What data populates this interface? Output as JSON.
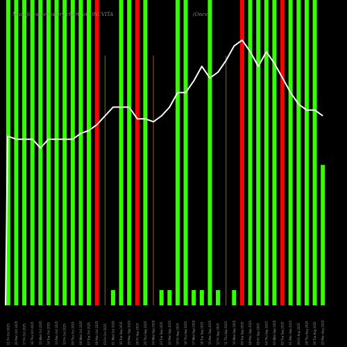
{
  "chart_data": {
    "type": "bar",
    "title": "Munafa value history chart for ONCVITA",
    "title_suffix": "(Oncvi",
    "categories": [
      "21 Fri Oct 2025",
      "20 Mon Oct 2025",
      "17 Fri Oct 2025",
      "16 Thu Oct 2025",
      "15 Wed Oct 2025",
      "14 Tue Oct 2025",
      "13 Mon Oct 2025",
      "10 Fri Oct 2025",
      "09 Thu Oct 2025",
      "08 Wed Oct 2025",
      "07 Tue Oct 2025",
      "06 Mon Oct 2025",
      "03 Fri Oct 2025",
      "01 Wed Oct 2025",
      "30 Tue Sep 2025",
      "29 Mon Sep 2025",
      "26 Fri Sep 2025",
      "25 Thu Sep 2025",
      "24 Wed Sep 2025",
      "23 Tue Sep 2025",
      "22 Mon Sep 2025",
      "19 Fri Sep 2025",
      "18 Thu Sep 2025",
      "17 Wed Sep 2025",
      "16 Tue Sep 2025",
      "15 Mon Sep 2025",
      "12 Fri Sep 2025",
      "11 Thu Sep 2025",
      "10 Wed Sep 2025",
      "09 Tue Sep 2025",
      "08 Mon Sep 2025",
      "05 Fri Sep 2025",
      "04 Thu Sep 2025",
      "03 Wed Sep 2025",
      "02 Tue Sep 2025",
      "01 Mon Sep 2025",
      "29 Fri Aug 2025",
      "28 Thu Aug 2025",
      "26 Tue Aug 2025",
      "25 Mon Aug 2025"
    ],
    "bars": [
      {
        "value": 100,
        "color": "#33ff00"
      },
      {
        "value": 100,
        "color": "#33ff00"
      },
      {
        "value": 100,
        "color": "#33ff00"
      },
      {
        "value": 100,
        "color": "#33ff00"
      },
      {
        "value": 100,
        "color": "#33ff00"
      },
      {
        "value": 100,
        "color": "#33ff00"
      },
      {
        "value": 100,
        "color": "#33ff00"
      },
      {
        "value": 100,
        "color": "#33ff00"
      },
      {
        "value": 100,
        "color": "#33ff00"
      },
      {
        "value": 100,
        "color": "#33ff00"
      },
      {
        "value": 100,
        "color": "#33ff00"
      },
      {
        "value": 100,
        "color": "#ff0000"
      },
      {
        "value": 0,
        "color": "#33ff00"
      },
      {
        "value": 5,
        "color": "#33ff00"
      },
      {
        "value": 100,
        "color": "#33ff00"
      },
      {
        "value": 100,
        "color": "#33ff00"
      },
      {
        "value": 100,
        "color": "#ff0000"
      },
      {
        "value": 100,
        "color": "#33ff00"
      },
      {
        "value": 0,
        "color": "#33ff00"
      },
      {
        "value": 5,
        "color": "#33ff00"
      },
      {
        "value": 5,
        "color": "#33ff00"
      },
      {
        "value": 100,
        "color": "#33ff00"
      },
      {
        "value": 100,
        "color": "#33ff00"
      },
      {
        "value": 5,
        "color": "#33ff00"
      },
      {
        "value": 5,
        "color": "#33ff00"
      },
      {
        "value": 100,
        "color": "#33ff00"
      },
      {
        "value": 5,
        "color": "#33ff00"
      },
      {
        "value": 0,
        "color": "#33ff00"
      },
      {
        "value": 5,
        "color": "#33ff00"
      },
      {
        "value": 100,
        "color": "#ff0000"
      },
      {
        "value": 100,
        "color": "#33ff00"
      },
      {
        "value": 100,
        "color": "#33ff00"
      },
      {
        "value": 100,
        "color": "#33ff00"
      },
      {
        "value": 100,
        "color": "#33ff00"
      },
      {
        "value": 100,
        "color": "#ff0000"
      },
      {
        "value": 100,
        "color": "#33ff00"
      },
      {
        "value": 100,
        "color": "#33ff00"
      },
      {
        "value": 100,
        "color": "#33ff00"
      },
      {
        "value": 100,
        "color": "#33ff00"
      },
      {
        "value": 46,
        "color": "#33ff00"
      }
    ],
    "line": [
      58,
      57,
      57,
      57,
      54,
      57,
      57,
      57,
      57,
      59,
      60,
      62,
      65,
      68,
      68,
      68,
      64,
      64,
      63,
      65,
      68,
      73,
      73,
      77,
      82,
      78,
      80,
      84,
      89,
      91,
      87,
      82,
      87,
      83,
      78,
      73,
      69,
      67,
      67,
      65
    ],
    "ylim": [
      0,
      100
    ],
    "line_ylim": [
      0,
      100
    ],
    "grid": false,
    "colors": {
      "background": "#000000",
      "up_bar": "#33ff00",
      "down_bar": "#ff0000",
      "line": "#ffffff",
      "baseline_marker": "#b35900",
      "title": "#8a8a8a"
    }
  }
}
